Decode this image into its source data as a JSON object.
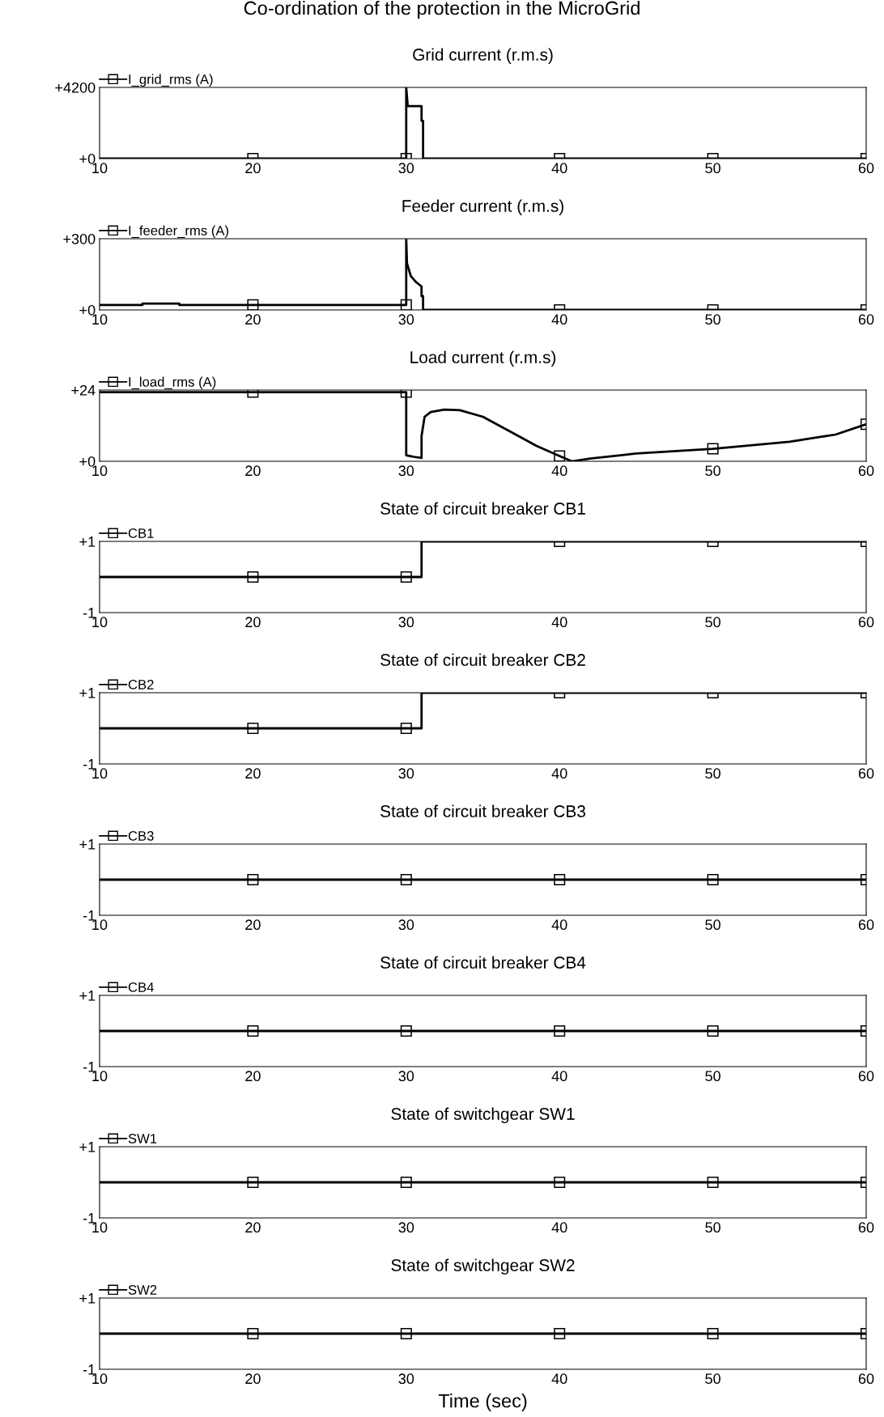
{
  "chart_data": [
    {
      "type": "line",
      "title": "Grid current (r.m.s)",
      "annotations": [
        "Co-ordination of the protection in the MicroGrid"
      ],
      "xlim": [
        10,
        60
      ],
      "xticks": [
        10,
        20,
        30,
        40,
        50,
        60
      ],
      "ylim": [
        0,
        4200
      ],
      "yticks": [
        {
          "value": 0,
          "label": "+0"
        },
        {
          "value": 4200,
          "label": "+4200"
        }
      ],
      "legend": "top left",
      "grid": false,
      "series": [
        {
          "name": "I_grid_rms (A)",
          "color": "#000000",
          "x": [
            10,
            20,
            30,
            30,
            30.1,
            31,
            31,
            31.1,
            31.1,
            40,
            50,
            60
          ],
          "values": [
            0,
            0,
            0,
            4200,
            3100,
            3100,
            2230,
            2230,
            0,
            0,
            0,
            0
          ]
        }
      ]
    },
    {
      "type": "line",
      "title": "Feeder current (r.m.s)",
      "xlim": [
        10,
        60
      ],
      "xticks": [
        10,
        20,
        30,
        40,
        50,
        60
      ],
      "ylim": [
        0,
        300
      ],
      "yticks": [
        {
          "value": 0,
          "label": "+0"
        },
        {
          "value": 300,
          "label": "+300"
        }
      ],
      "legend": "top left",
      "grid": false,
      "series": [
        {
          "name": "I_feeder_rms (A)",
          "color": "#000000",
          "x": [
            10,
            12.8,
            12.8,
            15.2,
            15.2,
            20,
            30,
            30,
            30.05,
            30.3,
            30.6,
            31,
            31,
            31.1,
            31.1,
            40,
            50,
            60
          ],
          "values": [
            21,
            21,
            27,
            27,
            21,
            21,
            21,
            300,
            196,
            143,
            120,
            99,
            58,
            58,
            1,
            0,
            0,
            0
          ]
        }
      ]
    },
    {
      "type": "line",
      "title": "Load current (r.m.s)",
      "xlim": [
        10,
        60
      ],
      "xticks": [
        10,
        20,
        30,
        40,
        50,
        60
      ],
      "ylim": [
        0,
        24
      ],
      "yticks": [
        {
          "value": 0,
          "label": "+0"
        },
        {
          "value": 24,
          "label": "+24"
        }
      ],
      "legend": "top left",
      "grid": false,
      "series": [
        {
          "name": "I_load_rms (A)",
          "color": "#000000",
          "x": [
            10,
            20,
            30,
            30,
            30.5,
            31,
            31,
            31.2,
            31.6,
            32.5,
            33.5,
            35,
            37,
            38.5,
            40,
            40.8,
            42,
            45,
            50,
            55,
            58,
            60
          ],
          "values": [
            23.3,
            23.3,
            23.3,
            2.0,
            1.5,
            1.1,
            8.5,
            15,
            16.6,
            17.4,
            17.2,
            15,
            9.4,
            5.2,
            1.8,
            0,
            0.9,
            2.6,
            4.2,
            6.6,
            9.0,
            12.5
          ]
        }
      ]
    },
    {
      "type": "line",
      "title": "State of circuit breaker CB1",
      "xlim": [
        10,
        60
      ],
      "xticks": [
        10,
        20,
        30,
        40,
        50,
        60
      ],
      "ylim": [
        -1,
        1
      ],
      "yticks": [
        {
          "value": -1,
          "label": "-1"
        },
        {
          "value": 1,
          "label": "+1"
        }
      ],
      "legend": "top left",
      "grid": false,
      "marker": "square",
      "series": [
        {
          "name": "CB1",
          "color": "#000000",
          "x": [
            10,
            20,
            30,
            31,
            31,
            40,
            50,
            60
          ],
          "values": [
            0,
            0,
            0,
            0,
            1,
            1,
            1,
            1
          ]
        }
      ]
    },
    {
      "type": "line",
      "title": "State of circuit breaker CB2",
      "xlim": [
        10,
        60
      ],
      "xticks": [
        10,
        20,
        30,
        40,
        50,
        60
      ],
      "ylim": [
        -1,
        1
      ],
      "yticks": [
        {
          "value": -1,
          "label": "-1"
        },
        {
          "value": 1,
          "label": "+1"
        }
      ],
      "legend": "top left",
      "grid": false,
      "marker": "square",
      "series": [
        {
          "name": "CB2",
          "color": "#000000",
          "x": [
            10,
            20,
            30,
            31,
            31,
            40,
            50,
            60
          ],
          "values": [
            0,
            0,
            0,
            0,
            1,
            1,
            1,
            1
          ]
        }
      ]
    },
    {
      "type": "line",
      "title": "State of circuit breaker CB3",
      "xlim": [
        10,
        60
      ],
      "xticks": [
        10,
        20,
        30,
        40,
        50,
        60
      ],
      "ylim": [
        -1,
        1
      ],
      "yticks": [
        {
          "value": -1,
          "label": "-1"
        },
        {
          "value": 1,
          "label": "+1"
        }
      ],
      "legend": "top left",
      "grid": false,
      "marker": "square",
      "series": [
        {
          "name": "CB3",
          "color": "#000000",
          "x": [
            10,
            20,
            30,
            40,
            50,
            60
          ],
          "values": [
            0,
            0,
            0,
            0,
            0,
            0
          ]
        }
      ]
    },
    {
      "type": "line",
      "title": "State of circuit breaker CB4",
      "xlim": [
        10,
        60
      ],
      "xticks": [
        10,
        20,
        30,
        40,
        50,
        60
      ],
      "ylim": [
        -1,
        1
      ],
      "yticks": [
        {
          "value": -1,
          "label": "-1"
        },
        {
          "value": 1,
          "label": "+1"
        }
      ],
      "legend": "top left",
      "grid": false,
      "marker": "square",
      "series": [
        {
          "name": "CB4",
          "color": "#000000",
          "x": [
            10,
            20,
            30,
            40,
            50,
            60
          ],
          "values": [
            0,
            0,
            0,
            0,
            0,
            0
          ]
        }
      ]
    },
    {
      "type": "line",
      "title": "State of switchgear SW1",
      "xlim": [
        10,
        60
      ],
      "xticks": [
        10,
        20,
        30,
        40,
        50,
        60
      ],
      "ylim": [
        -1,
        1
      ],
      "yticks": [
        {
          "value": -1,
          "label": "-1"
        },
        {
          "value": 1,
          "label": "+1"
        }
      ],
      "legend": "top left",
      "grid": false,
      "marker": "square",
      "series": [
        {
          "name": "SW1",
          "color": "#000000",
          "x": [
            10,
            20,
            30,
            40,
            50,
            60
          ],
          "values": [
            0,
            0,
            0,
            0,
            0,
            0
          ]
        }
      ]
    },
    {
      "type": "line",
      "title": "State of switchgear SW2",
      "xlabel": "Time (sec)",
      "xlim": [
        10,
        60
      ],
      "xticks": [
        10,
        20,
        30,
        40,
        50,
        60
      ],
      "ylim": [
        -1,
        1
      ],
      "yticks": [
        {
          "value": -1,
          "label": "-1"
        },
        {
          "value": 1,
          "label": "+1"
        }
      ],
      "legend": "top left",
      "grid": false,
      "marker": "square",
      "series": [
        {
          "name": "SW2",
          "color": "#000000",
          "x": [
            10,
            20,
            30,
            40,
            50,
            60
          ],
          "values": [
            0,
            0,
            0,
            0,
            0,
            0
          ]
        }
      ]
    }
  ]
}
